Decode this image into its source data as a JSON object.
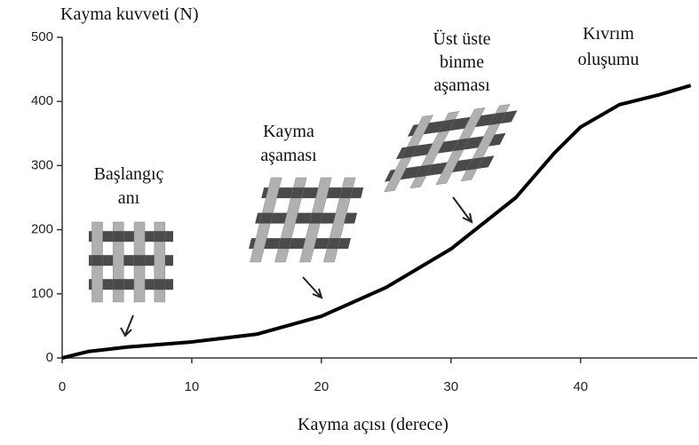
{
  "chart_data": {
    "type": "line",
    "y_label": "Kayma kuvveti (N)",
    "x_label": "Kayma açısı (derece)",
    "x": [
      0,
      2,
      5,
      10,
      15,
      20,
      25,
      30,
      35,
      38,
      40,
      43,
      46,
      48.5
    ],
    "series": [
      {
        "color": "#000000",
        "values": [
          0,
          10,
          17,
          25,
          37,
          65,
          110,
          170,
          250,
          320,
          360,
          395,
          410,
          425
        ]
      }
    ],
    "xlim": [
      0,
      49
    ],
    "ylim": [
      0,
      500
    ],
    "xticks": [
      0,
      10,
      20,
      30,
      40
    ],
    "yticks": [
      0,
      100,
      200,
      300,
      400,
      500
    ],
    "annotations": [
      {
        "lines": [
          "Başlangıç",
          "anı"
        ]
      },
      {
        "lines": [
          "Kayma",
          "aşaması"
        ]
      },
      {
        "lines": [
          "Üst üste",
          "binme",
          "aşaması"
        ]
      },
      {
        "lines": [
          "Kıvrım",
          "oluşumu"
        ]
      }
    ]
  }
}
